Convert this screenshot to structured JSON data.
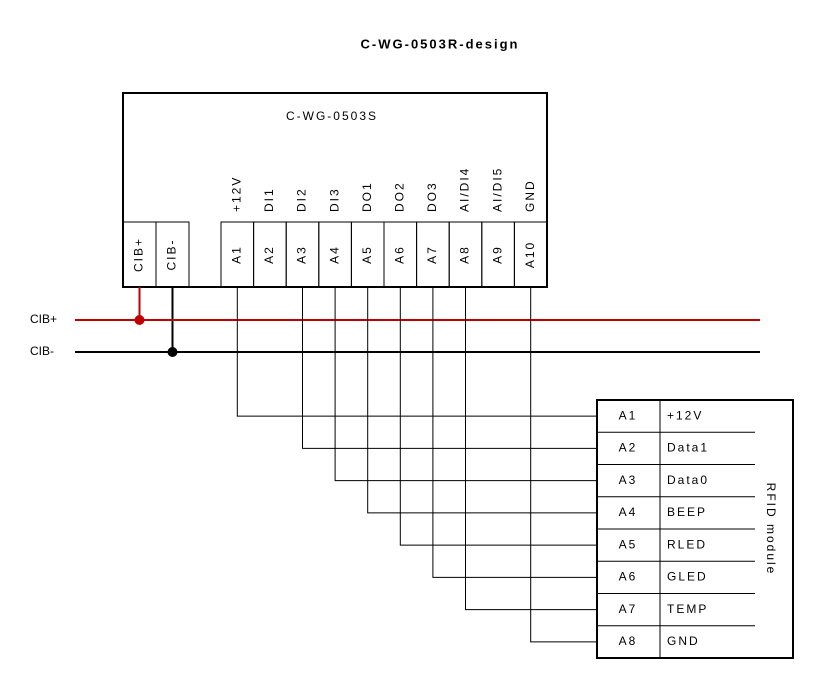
{
  "header": {
    "title": "C-WG-0503R-design"
  },
  "module": {
    "label": "C-WG-0503S",
    "bus_terminals": [
      "CIB+",
      "CIB-"
    ],
    "pins": [
      {
        "signal": "+12V",
        "terminal": "A1"
      },
      {
        "signal": "DI1",
        "terminal": "A2"
      },
      {
        "signal": "DI2",
        "terminal": "A3"
      },
      {
        "signal": "DI3",
        "terminal": "A4"
      },
      {
        "signal": "DO1",
        "terminal": "A5"
      },
      {
        "signal": "DO2",
        "terminal": "A6"
      },
      {
        "signal": "DO3",
        "terminal": "A7"
      },
      {
        "signal": "AI/DI4",
        "terminal": "A8"
      },
      {
        "signal": "AI/DI5",
        "terminal": "A9"
      },
      {
        "signal": "GND",
        "terminal": "A10"
      }
    ]
  },
  "bus": {
    "lines": [
      "CIB+",
      "CIB-"
    ]
  },
  "rfid": {
    "title": "RFID module",
    "rows": [
      {
        "pin": "A1",
        "signal": "+12V"
      },
      {
        "pin": "A2",
        "signal": "Data1"
      },
      {
        "pin": "A3",
        "signal": "Data0"
      },
      {
        "pin": "A4",
        "signal": "BEEP"
      },
      {
        "pin": "A5",
        "signal": "RLED"
      },
      {
        "pin": "A6",
        "signal": "GLED"
      },
      {
        "pin": "A7",
        "signal": "TEMP"
      },
      {
        "pin": "A8",
        "signal": "GND"
      }
    ]
  }
}
